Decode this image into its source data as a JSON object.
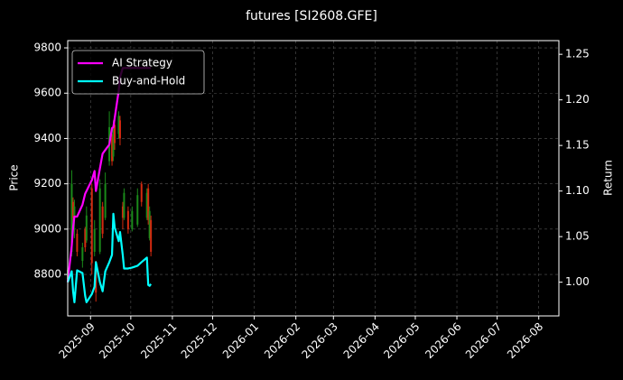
{
  "chart_data": {
    "type": "candlestick",
    "title": "futures [SI2608.GFE]",
    "ylabel": "Price",
    "y2label": "Return",
    "x": [
      "2025-08-15",
      "2025-08-18",
      "2025-08-19",
      "2025-08-20",
      "2025-08-22",
      "2025-08-26",
      "2025-08-28",
      "2025-08-29",
      "2025-09-02",
      "2025-09-04",
      "2025-09-05",
      "2025-09-08",
      "2025-09-10",
      "2025-09-12",
      "2025-09-15",
      "2025-09-17",
      "2025-09-18",
      "2025-09-19",
      "2025-09-22",
      "2025-09-23",
      "2025-09-25",
      "2025-09-26",
      "2025-09-29",
      "2025-10-02",
      "2025-10-06",
      "2025-10-09",
      "2025-10-13",
      "2025-10-14",
      "2025-10-15",
      "2025-10-16"
    ],
    "open": [
      8780,
      8900,
      9120,
      9050,
      8980,
      8860,
      9000,
      8950,
      9180,
      8900,
      8820,
      8900,
      9100,
      9050,
      9300,
      9400,
      9320,
      9460,
      9420,
      9480,
      9100,
      9050,
      9080,
      9000,
      9020,
      9200,
      9050,
      9180,
      8960,
      9040
    ],
    "high": [
      8850,
      9260,
      9140,
      9130,
      9000,
      8940,
      9010,
      9100,
      9200,
      9040,
      8860,
      9220,
      9120,
      9250,
      9520,
      9420,
      9480,
      9500,
      9520,
      9500,
      9120,
      9180,
      9100,
      9100,
      9180,
      9210,
      9180,
      9200,
      9100,
      9060
    ],
    "low": [
      8760,
      8880,
      9020,
      8960,
      8880,
      8830,
      8900,
      8940,
      8800,
      8880,
      8680,
      8890,
      8960,
      9040,
      9280,
      9280,
      9300,
      9350,
      9400,
      9370,
      9000,
      9040,
      8980,
      8990,
      9010,
      9100,
      9040,
      9020,
      8950,
      8880
    ],
    "close": [
      8820,
      9200,
      9050,
      9100,
      8900,
      8920,
      8920,
      9060,
      8850,
      9000,
      8720,
      9180,
      8980,
      9200,
      9450,
      9300,
      9460,
      9380,
      9500,
      9400,
      9050,
      9160,
      9000,
      9080,
      9150,
      9120,
      9160,
      9040,
      9080,
      8900
    ],
    "up_color": "#1a8a1a",
    "down_color": "#d42a10",
    "series": [
      {
        "name": "AI Strategy",
        "color": "#ff00ff",
        "axis": "y2",
        "values": [
          1.0,
          1.04,
          1.06,
          1.072,
          1.072,
          1.085,
          1.097,
          1.1,
          1.112,
          1.122,
          1.1,
          1.125,
          1.141,
          1.145,
          1.151,
          1.169,
          1.17,
          1.18,
          1.21,
          1.225,
          1.235,
          1.235,
          1.235,
          1.235,
          1.235,
          1.235,
          1.235,
          1.235,
          1.235,
          1.235
        ]
      },
      {
        "name": "Buy-and-Hold",
        "color": "#00ffff",
        "axis": "y2",
        "values": [
          1.0,
          1.012,
          0.99,
          0.978,
          1.013,
          1.01,
          0.985,
          0.978,
          0.987,
          0.995,
          1.022,
          1.0,
          0.99,
          1.012,
          1.022,
          1.03,
          1.075,
          1.06,
          1.045,
          1.055,
          1.03,
          1.015,
          1.015,
          1.016,
          1.018,
          1.022,
          1.027,
          0.997,
          0.996,
          0.998
        ]
      }
    ],
    "xlim": [
      "2025-08-15",
      "2026-08-16"
    ],
    "xticks": [
      "2025-09",
      "2025-10",
      "2025-11",
      "2025-12",
      "2026-01",
      "2026-02",
      "2026-03",
      "2026-04",
      "2026-05",
      "2026-06",
      "2026-07",
      "2026-08"
    ],
    "ylim": [
      8617,
      9832
    ],
    "yticks": [
      8800,
      9000,
      9200,
      9400,
      9600,
      9800
    ],
    "y2lim": [
      0.963,
      1.265
    ],
    "y2ticks": [
      {
        "value": 1.0,
        "label": "1.00"
      },
      {
        "value": 1.05,
        "label": "1.05"
      },
      {
        "value": 1.1,
        "label": "1.10"
      },
      {
        "value": 1.15,
        "label": "1.15"
      },
      {
        "value": 1.2,
        "label": "1.20"
      },
      {
        "value": 1.25,
        "label": "1.25"
      }
    ],
    "grid": true,
    "legend": "upper left"
  }
}
